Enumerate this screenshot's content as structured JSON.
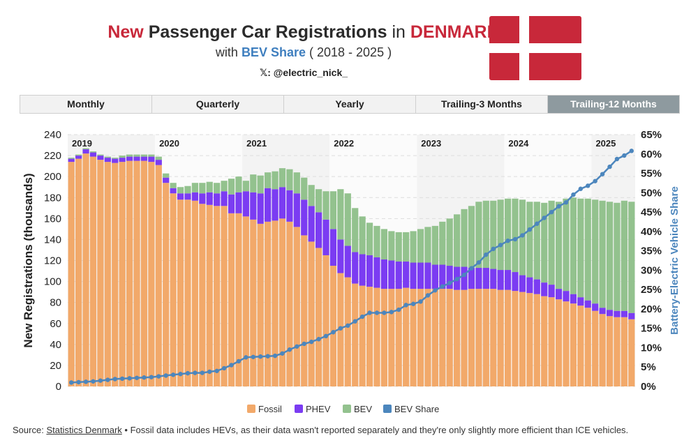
{
  "header": {
    "title_new": "New",
    "title_main": "Passenger Car Registrations",
    "title_in": "in",
    "title_country": "DENMARK",
    "subtitle_with": "with",
    "subtitle_bev": "BEV Share",
    "subtitle_range": "( 2018 - 2025 )",
    "handle": "𝕏: @electric_nick_"
  },
  "colors": {
    "fossil": "#f2a96a",
    "phev": "#7b3cf2",
    "bev": "#93c28e",
    "share": "#4c86bd",
    "accent_red": "#c8283a"
  },
  "tabs": [
    {
      "label": "Monthly",
      "active": false
    },
    {
      "label": "Quarterly",
      "active": false
    },
    {
      "label": "Yearly",
      "active": false
    },
    {
      "label": "Trailing-3 Months",
      "active": false
    },
    {
      "label": "Trailing-12 Months",
      "active": true
    }
  ],
  "chart_data": {
    "type": "bar",
    "stacked": true,
    "title": "New Passenger Car Registrations in DENMARK",
    "ylabel": "New Registrations (thousands)",
    "y2label": "Battery-Electric Vehicle Share",
    "ylim": [
      0,
      240
    ],
    "y_ticks": [
      "0",
      "20",
      "40",
      "60",
      "80",
      "100",
      "120",
      "140",
      "160",
      "180",
      "200",
      "220",
      "240"
    ],
    "y2lim": [
      0,
      65
    ],
    "y2_ticks": [
      "0%",
      "5%",
      "10%",
      "15%",
      "20%",
      "25%",
      "30%",
      "35%",
      "40%",
      "45%",
      "50%",
      "55%",
      "60%",
      "65%"
    ],
    "year_labels": [
      "2019",
      "2020",
      "2021",
      "2022",
      "2023",
      "2024",
      "2025"
    ],
    "year_start_index": [
      0,
      12,
      24,
      36,
      48,
      60,
      72
    ],
    "grid": true,
    "series": [
      {
        "name": "Fossil",
        "values": [
          214,
          217,
          222,
          219,
          216,
          214,
          213,
          214,
          215,
          215,
          215,
          214,
          211,
          194,
          184,
          178,
          178,
          177,
          174,
          173,
          172,
          172,
          165,
          165,
          162,
          159,
          155,
          157,
          158,
          160,
          157,
          152,
          144,
          138,
          132,
          125,
          115,
          108,
          104,
          98,
          96,
          95,
          94,
          93,
          93,
          93,
          94,
          93,
          93,
          93,
          93,
          93,
          93,
          92,
          92,
          93,
          93,
          93,
          93,
          92,
          92,
          91,
          90,
          89,
          88,
          86,
          85,
          83,
          81,
          79,
          77,
          75,
          72,
          69,
          67,
          66,
          66,
          64
        ]
      },
      {
        "name": "PHEV",
        "values": [
          3,
          3,
          4,
          4,
          4,
          4,
          4,
          4,
          4,
          4,
          4,
          5,
          5,
          5,
          5,
          6,
          6,
          8,
          10,
          12,
          12,
          14,
          18,
          20,
          24,
          26,
          29,
          32,
          30,
          30,
          30,
          32,
          34,
          34,
          34,
          34,
          35,
          32,
          30,
          30,
          30,
          30,
          29,
          28,
          27,
          26,
          25,
          25,
          25,
          25,
          23,
          23,
          22,
          22,
          22,
          20,
          20,
          20,
          19,
          19,
          19,
          18,
          16,
          15,
          14,
          13,
          12,
          10,
          10,
          9,
          8,
          7,
          7,
          6,
          6,
          6,
          6,
          6
        ]
      },
      {
        "name": "BEV",
        "values": [
          1,
          1,
          1,
          1,
          1,
          1,
          1,
          2,
          2,
          2,
          2,
          2,
          3,
          4,
          5,
          6,
          7,
          9,
          10,
          10,
          10,
          10,
          15,
          15,
          10,
          17,
          17,
          15,
          17,
          18,
          20,
          20,
          21,
          20,
          22,
          27,
          36,
          48,
          50,
          42,
          36,
          31,
          30,
          29,
          28,
          28,
          28,
          30,
          32,
          34,
          37,
          41,
          45,
          50,
          55,
          59,
          63,
          64,
          65,
          67,
          68,
          70,
          72,
          72,
          74,
          76,
          80,
          83,
          88,
          92,
          94,
          97,
          99,
          102,
          103,
          103,
          105,
          106
        ]
      },
      {
        "name": "BEV Share",
        "axis": "right",
        "values": [
          1,
          1.1,
          1.2,
          1.3,
          1.5,
          1.7,
          1.9,
          2,
          2.1,
          2.2,
          2.3,
          2.4,
          2.6,
          2.8,
          3,
          3.2,
          3.4,
          3.5,
          3.5,
          3.8,
          4,
          4.7,
          5.5,
          6.5,
          7.5,
          7.6,
          7.7,
          7.8,
          7.9,
          8.5,
          9.5,
          10.3,
          11,
          11.5,
          12.2,
          13,
          14,
          15,
          15.7,
          16.8,
          18,
          19,
          19,
          19,
          19.2,
          19.8,
          21,
          21.3,
          21.9,
          23.5,
          24.8,
          25.8,
          26.7,
          27.7,
          28.8,
          30.5,
          32,
          34,
          35.5,
          36.5,
          37.6,
          38,
          39,
          40.5,
          42,
          43.5,
          45,
          46.5,
          47.5,
          49.5,
          51,
          51.8,
          53,
          54.8,
          56.7,
          58.7,
          59.6,
          60.8
        ]
      }
    ]
  },
  "legend": [
    {
      "name": "fossil",
      "label": "Fossil",
      "color": "#f2a96a"
    },
    {
      "name": "phev",
      "label": "PHEV",
      "color": "#7b3cf2"
    },
    {
      "name": "bev",
      "label": "BEV",
      "color": "#93c28e"
    },
    {
      "name": "bev-share",
      "label": "BEV Share",
      "color": "#4c86bd"
    }
  ],
  "footer": {
    "source_prefix": "Source:",
    "source_link": "Statistics Denmark",
    "source_note": " • Fossil data includes HEVs, as their data wasn't reported separately and they're only slightly more efficient than ICE vehicles."
  }
}
